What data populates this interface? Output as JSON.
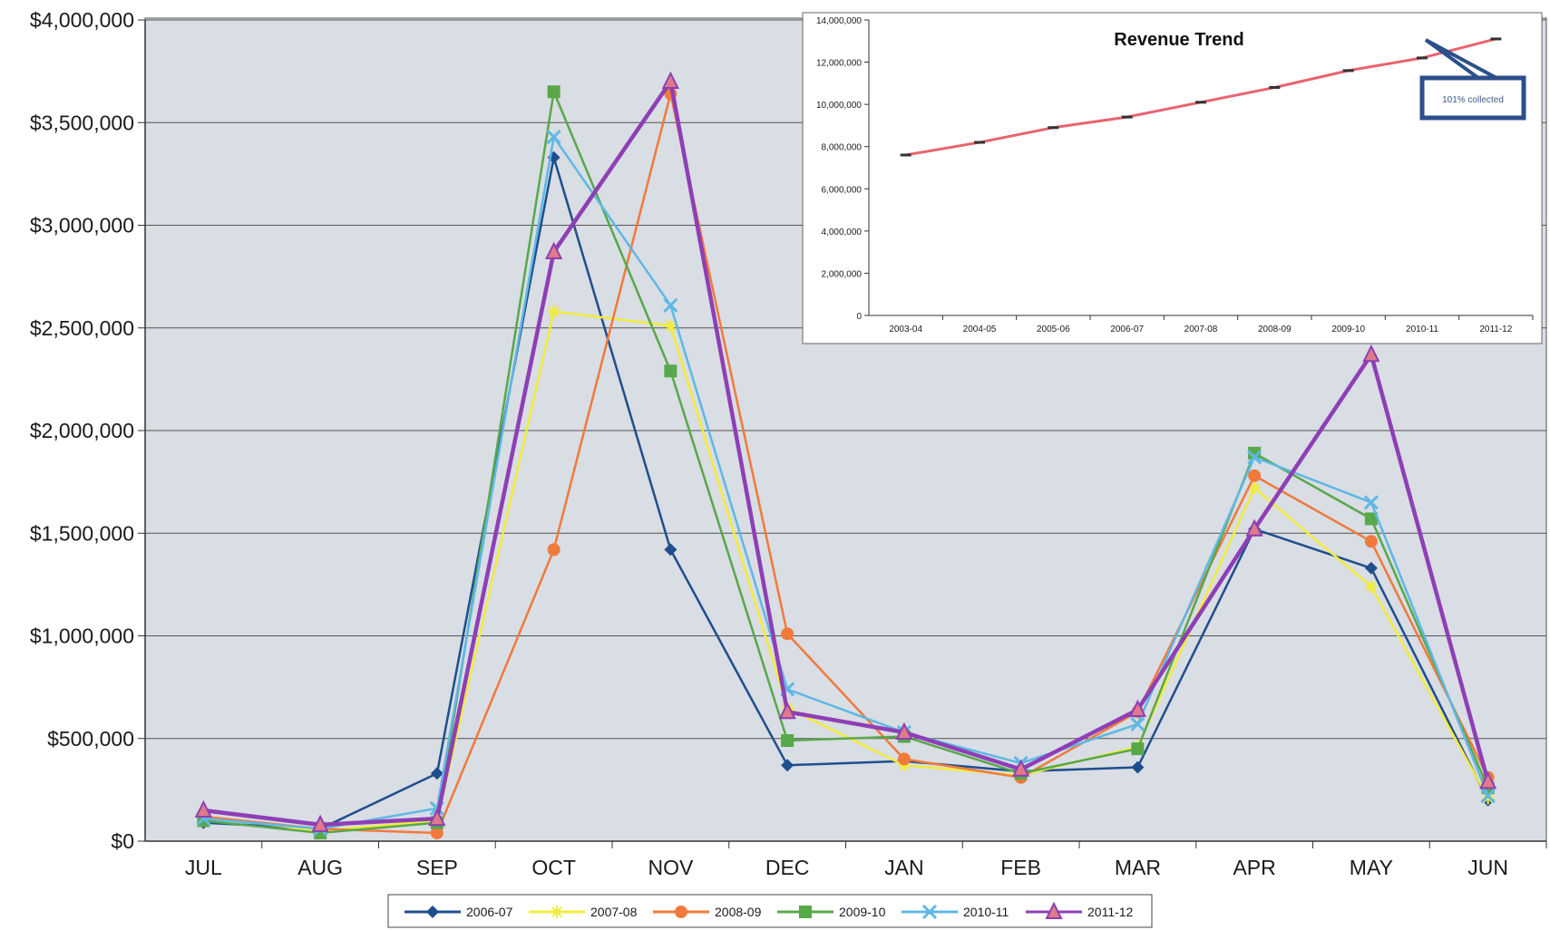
{
  "chart_data": [
    {
      "type": "line",
      "categories": [
        "JUL",
        "AUG",
        "SEP",
        "OCT",
        "NOV",
        "DEC",
        "JAN",
        "FEB",
        "MAR",
        "APR",
        "MAY",
        "JUN"
      ],
      "y_tick_labels": [
        "$0",
        "$500,000",
        "$1,000,000",
        "$1,500,000",
        "$2,000,000",
        "$2,500,000",
        "$3,000,000",
        "$3,500,000",
        "$4,000,000"
      ],
      "ylim": [
        0,
        4000000
      ],
      "grid": true,
      "legend_position": "bottom",
      "series": [
        {
          "name": "2006-07",
          "color": "#1f4e8c",
          "marker": "diamond",
          "values": [
            90000,
            60000,
            330000,
            3330000,
            1420000,
            370000,
            390000,
            340000,
            360000,
            1520000,
            1330000,
            200000
          ]
        },
        {
          "name": "2007-08",
          "color": "#f2ec3a",
          "marker": "star",
          "values": [
            120000,
            50000,
            100000,
            2580000,
            2510000,
            650000,
            370000,
            320000,
            460000,
            1720000,
            1240000,
            210000
          ]
        },
        {
          "name": "2008-09",
          "color": "#f07a3c",
          "marker": "circle",
          "values": [
            120000,
            60000,
            40000,
            1420000,
            3640000,
            1010000,
            400000,
            310000,
            630000,
            1780000,
            1460000,
            310000
          ]
        },
        {
          "name": "2009-10",
          "color": "#58a84a",
          "marker": "square",
          "values": [
            100000,
            40000,
            90000,
            3650000,
            2290000,
            490000,
            510000,
            330000,
            450000,
            1890000,
            1570000,
            260000
          ]
        },
        {
          "name": "2010-11",
          "color": "#5fb8e4",
          "marker": "x",
          "values": [
            110000,
            60000,
            160000,
            3430000,
            2610000,
            740000,
            530000,
            380000,
            570000,
            1870000,
            1650000,
            220000
          ]
        },
        {
          "name": "2011-12",
          "color": "#8e3fb5",
          "marker": "triangle",
          "values": [
            150000,
            80000,
            110000,
            2870000,
            3700000,
            630000,
            530000,
            350000,
            640000,
            1520000,
            2370000,
            290000
          ]
        }
      ]
    },
    {
      "type": "line",
      "title": "Revenue Trend",
      "categories": [
        "2003-04",
        "2004-05",
        "2005-06",
        "2006-07",
        "2007-08",
        "2008-09",
        "2009-10",
        "2010-11",
        "2011-12"
      ],
      "y_tick_labels": [
        "0",
        "2,000,000",
        "4,000,000",
        "6,000,000",
        "8,000,000",
        "10,000,000",
        "12,000,000",
        "14,000,000"
      ],
      "ylim": [
        0,
        14000000
      ],
      "series": [
        {
          "color": "#e8646e",
          "values": [
            7600000,
            8200000,
            8900000,
            9400000,
            10100000,
            10800000,
            11600000,
            12200000,
            13100000
          ]
        }
      ],
      "annotation": "101% collected"
    }
  ]
}
